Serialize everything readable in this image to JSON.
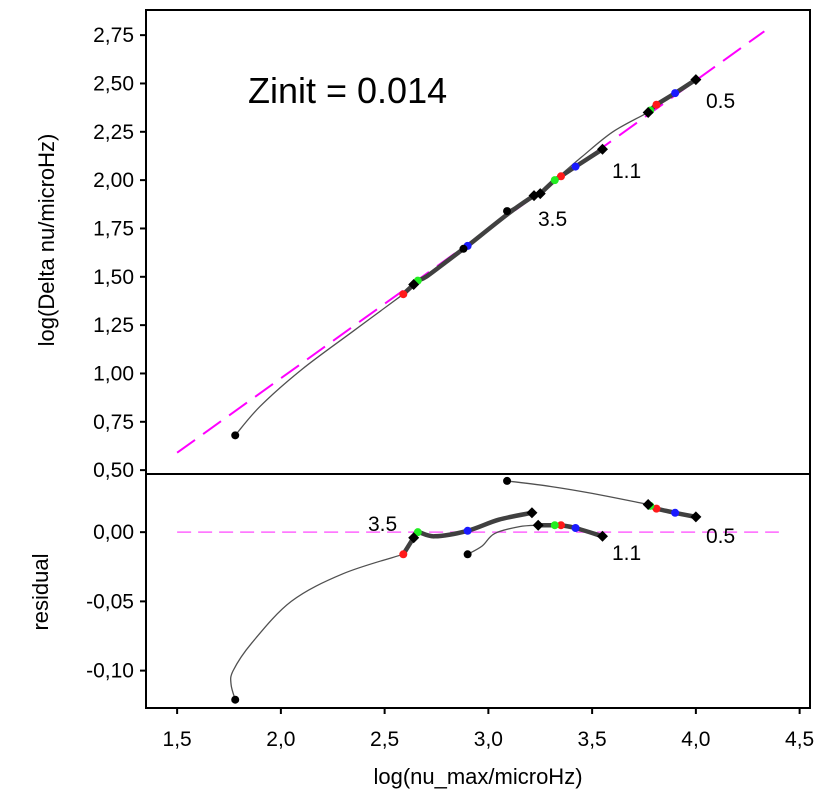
{
  "chart_data": [
    {
      "type": "line",
      "panel": "top",
      "title": "Zinit = 0.014",
      "xlabel": "log(nu_max/microHz)",
      "ylabel": "log(Delta nu/microHz)",
      "xlim": [
        1.35,
        4.55
      ],
      "ylim": [
        0.48,
        2.88
      ],
      "xticks": [
        "1,5",
        "2,0",
        "2,5",
        "3,0",
        "3,5",
        "4,0",
        "4,5"
      ],
      "xtick_values": [
        1.5,
        2.0,
        2.5,
        3.0,
        3.5,
        4.0,
        4.5
      ],
      "yticks": [
        "0,50",
        "0,75",
        "1,00",
        "1,25",
        "1,50",
        "1,75",
        "2,00",
        "2,25",
        "2,50",
        "2,75"
      ],
      "ytick_values": [
        0.5,
        0.75,
        1.0,
        1.25,
        1.5,
        1.75,
        2.0,
        2.25,
        2.5,
        2.75
      ],
      "reference_line": {
        "name": "fit",
        "color": "#ff00ff",
        "style": "dashed",
        "x": [
          1.5,
          4.33
        ],
        "y": [
          0.59,
          2.77
        ]
      },
      "series": [
        {
          "name": "0.5",
          "label": "0.5",
          "kind": "thick",
          "x": [
            4.0,
            3.9,
            3.81,
            3.78,
            3.77
          ],
          "y": [
            2.52,
            2.45,
            2.39,
            2.36,
            2.35
          ]
        },
        {
          "name": "0.5-pre",
          "kind": "thin",
          "x": [
            3.77,
            3.6,
            3.45,
            3.32
          ],
          "y": [
            2.35,
            2.25,
            2.12,
            2.0
          ]
        },
        {
          "name": "1.1",
          "label": "1.1",
          "kind": "thick",
          "x": [
            3.55,
            3.42,
            3.35,
            3.32,
            3.25
          ],
          "y": [
            2.16,
            2.07,
            2.02,
            2.0,
            1.93
          ]
        },
        {
          "name": "1.1-pre",
          "kind": "thin",
          "x": [
            3.25,
            3.16,
            3.09
          ],
          "y": [
            1.93,
            1.88,
            1.84
          ]
        },
        {
          "name": "3.5",
          "label": "3.5",
          "kind": "thick",
          "x": [
            3.22,
            3.1,
            2.9,
            2.88,
            2.8,
            2.7,
            2.66,
            2.64,
            2.59
          ],
          "y": [
            1.92,
            1.83,
            1.66,
            1.645,
            1.58,
            1.5,
            1.48,
            1.46,
            1.41
          ]
        },
        {
          "name": "3.5-pre",
          "kind": "thin",
          "x": [
            2.59,
            2.35,
            2.1,
            1.9,
            1.78
          ],
          "y": [
            1.41,
            1.22,
            1.02,
            0.83,
            0.68
          ]
        }
      ],
      "markers": [
        {
          "x": 4.0,
          "y": 2.52,
          "shape": "diamond",
          "color": "#000000"
        },
        {
          "x": 3.9,
          "y": 2.45,
          "shape": "circle",
          "color": "#1a1aff"
        },
        {
          "x": 3.81,
          "y": 2.39,
          "shape": "circle",
          "color": "#ff1a1a"
        },
        {
          "x": 3.78,
          "y": 2.36,
          "shape": "circle",
          "color": "#22ee22"
        },
        {
          "x": 3.77,
          "y": 2.35,
          "shape": "diamond",
          "color": "#000000"
        },
        {
          "x": 3.55,
          "y": 2.16,
          "shape": "diamond",
          "color": "#000000"
        },
        {
          "x": 3.42,
          "y": 2.07,
          "shape": "circle",
          "color": "#1a1aff"
        },
        {
          "x": 3.35,
          "y": 2.02,
          "shape": "circle",
          "color": "#ff1a1a"
        },
        {
          "x": 3.32,
          "y": 2.0,
          "shape": "circle",
          "color": "#22ee22"
        },
        {
          "x": 3.25,
          "y": 1.93,
          "shape": "diamond",
          "color": "#000000"
        },
        {
          "x": 3.22,
          "y": 1.92,
          "shape": "diamond",
          "color": "#000000"
        },
        {
          "x": 3.09,
          "y": 1.84,
          "shape": "circle",
          "color": "#000000"
        },
        {
          "x": 2.9,
          "y": 1.66,
          "shape": "circle",
          "color": "#1a1aff"
        },
        {
          "x": 2.88,
          "y": 1.645,
          "shape": "circle",
          "color": "#000000"
        },
        {
          "x": 2.66,
          "y": 1.48,
          "shape": "circle",
          "color": "#22ee22"
        },
        {
          "x": 2.64,
          "y": 1.46,
          "shape": "diamond",
          "color": "#000000"
        },
        {
          "x": 2.59,
          "y": 1.41,
          "shape": "circle",
          "color": "#ff1a1a"
        },
        {
          "x": 1.78,
          "y": 0.68,
          "shape": "circle",
          "color": "#000000"
        }
      ]
    },
    {
      "type": "line",
      "panel": "bottom",
      "xlabel": "log(nu_max/microHz)",
      "ylabel": "residual",
      "xlim": [
        1.35,
        4.55
      ],
      "ylim": [
        -0.127,
        0.042
      ],
      "yticks": [
        "0,00",
        "-0,05",
        "-0,10"
      ],
      "ytick_values": [
        0.0,
        -0.05,
        -0.1
      ],
      "reference_line": {
        "name": "zero",
        "color": "#ff66ff",
        "style": "dashed",
        "x": [
          1.5,
          4.4
        ],
        "y": [
          0.0,
          0.0
        ]
      },
      "series": [
        {
          "name": "0.5",
          "label": "0.5",
          "kind": "thick",
          "x": [
            4.0,
            3.9,
            3.81,
            3.78,
            3.77
          ],
          "y": [
            0.011,
            0.014,
            0.017,
            0.019,
            0.02
          ]
        },
        {
          "name": "0.5-pre",
          "kind": "thin",
          "x": [
            3.77,
            3.5,
            3.3,
            3.09
          ],
          "y": [
            0.02,
            0.028,
            0.033,
            0.037
          ]
        },
        {
          "name": "1.1",
          "label": "1.1",
          "kind": "thick",
          "x": [
            3.55,
            3.42,
            3.35,
            3.32,
            3.24
          ],
          "y": [
            -0.003,
            0.003,
            0.005,
            0.005,
            0.005
          ]
        },
        {
          "name": "1.1-pre",
          "kind": "thin",
          "x": [
            3.24,
            3.15,
            3.03,
            2.97,
            2.9
          ],
          "y": [
            0.005,
            0.004,
            -0.001,
            -0.01,
            -0.016
          ]
        },
        {
          "name": "3.5",
          "label": "3.5",
          "kind": "thick",
          "x": [
            3.21,
            3.05,
            2.9,
            2.74,
            2.66,
            2.64,
            2.59
          ],
          "y": [
            0.014,
            0.009,
            0.001,
            -0.003,
            0.0,
            -0.004,
            -0.016
          ]
        },
        {
          "name": "3.5-pre",
          "kind": "thin",
          "x": [
            2.59,
            2.3,
            2.05,
            1.86,
            1.77,
            1.76,
            1.78
          ],
          "y": [
            -0.016,
            -0.03,
            -0.05,
            -0.08,
            -0.1,
            -0.11,
            -0.121
          ]
        }
      ],
      "markers": [
        {
          "x": 4.0,
          "y": 0.011,
          "shape": "diamond",
          "color": "#000000"
        },
        {
          "x": 3.9,
          "y": 0.014,
          "shape": "circle",
          "color": "#1a1aff"
        },
        {
          "x": 3.81,
          "y": 0.017,
          "shape": "circle",
          "color": "#ff1a1a"
        },
        {
          "x": 3.78,
          "y": 0.019,
          "shape": "circle",
          "color": "#22ee22"
        },
        {
          "x": 3.77,
          "y": 0.02,
          "shape": "diamond",
          "color": "#000000"
        },
        {
          "x": 3.09,
          "y": 0.037,
          "shape": "circle",
          "color": "#000000"
        },
        {
          "x": 3.55,
          "y": -0.003,
          "shape": "diamond",
          "color": "#000000"
        },
        {
          "x": 3.42,
          "y": 0.003,
          "shape": "circle",
          "color": "#1a1aff"
        },
        {
          "x": 3.35,
          "y": 0.005,
          "shape": "circle",
          "color": "#ff1a1a"
        },
        {
          "x": 3.32,
          "y": 0.005,
          "shape": "circle",
          "color": "#22ee22"
        },
        {
          "x": 3.24,
          "y": 0.005,
          "shape": "diamond",
          "color": "#000000"
        },
        {
          "x": 3.21,
          "y": 0.014,
          "shape": "diamond",
          "color": "#000000"
        },
        {
          "x": 2.9,
          "y": 0.001,
          "shape": "circle",
          "color": "#1a1aff"
        },
        {
          "x": 2.9,
          "y": -0.016,
          "shape": "circle",
          "color": "#000000"
        },
        {
          "x": 2.66,
          "y": 0.0,
          "shape": "circle",
          "color": "#22ee22"
        },
        {
          "x": 2.64,
          "y": -0.004,
          "shape": "diamond",
          "color": "#000000"
        },
        {
          "x": 2.59,
          "y": -0.016,
          "shape": "circle",
          "color": "#ff1a1a"
        },
        {
          "x": 1.78,
          "y": -0.121,
          "shape": "circle",
          "color": "#000000"
        }
      ],
      "annotations": [
        {
          "text": "3.5",
          "x": 2.41,
          "y": 0.006
        },
        {
          "text": "1.1",
          "x": 3.57,
          "y": -0.018
        },
        {
          "text": "0.5",
          "x": 4.03,
          "y": -0.005
        }
      ]
    }
  ],
  "top_annotations": [
    {
      "text": "0.5",
      "x": 4.03,
      "y": 2.44
    },
    {
      "text": "1.1",
      "x": 3.58,
      "y": 2.06
    },
    {
      "text": "3.5",
      "x": 3.24,
      "y": 1.8
    }
  ],
  "colors": {
    "line": "#444444",
    "fit": "#ff00ff",
    "zero": "#ff66ff"
  }
}
